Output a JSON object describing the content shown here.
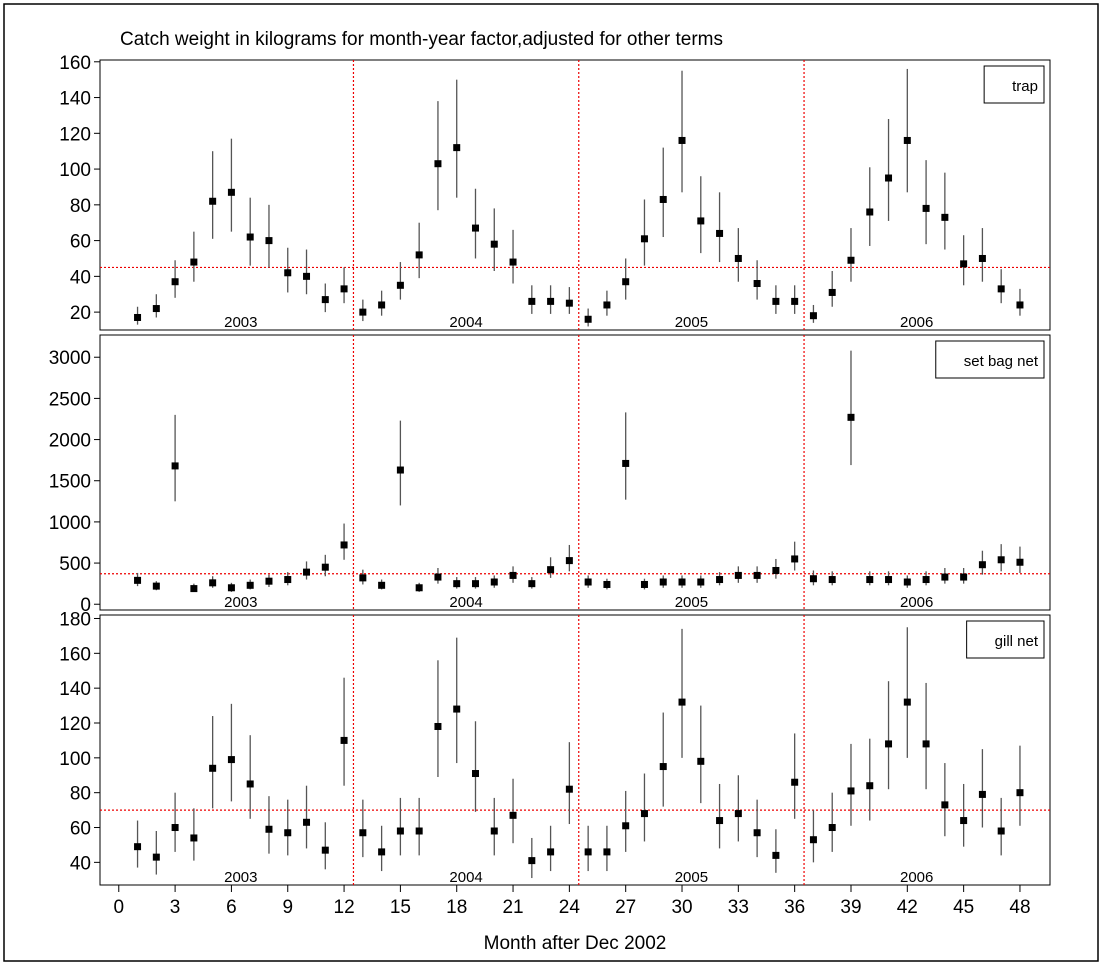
{
  "chart_data": [
    {
      "type": "scatter",
      "title": "Catch weight in kilograms for month-year factor,adjusted for other terms",
      "x": [
        1,
        2,
        3,
        4,
        5,
        6,
        7,
        8,
        9,
        10,
        11,
        12,
        13,
        14,
        15,
        16,
        17,
        18,
        19,
        20,
        21,
        22,
        23,
        24,
        25,
        26,
        27,
        28,
        29,
        30,
        31,
        32,
        33,
        34,
        35,
        36,
        37,
        38,
        39,
        40,
        41,
        42,
        43,
        44,
        45,
        46,
        47,
        48
      ],
      "series": [
        {
          "name": "trap",
          "color": "#000000",
          "values": [
            17,
            22,
            37,
            48,
            82,
            87,
            62,
            60,
            42,
            40,
            27,
            33,
            20,
            24,
            35,
            52,
            103,
            112,
            67,
            58,
            48,
            26,
            26,
            25,
            16,
            24,
            37,
            61,
            83,
            116,
            71,
            64,
            50,
            36,
            26,
            26,
            18,
            31,
            49,
            76,
            95,
            116,
            78,
            73,
            47,
            50,
            33,
            24
          ],
          "lower": [
            13,
            17,
            28,
            37,
            61,
            65,
            46,
            45,
            31,
            30,
            20,
            25,
            15,
            18,
            27,
            39,
            77,
            84,
            50,
            43,
            36,
            19,
            19,
            19,
            12,
            18,
            27,
            46,
            62,
            87,
            53,
            48,
            37,
            27,
            19,
            19,
            14,
            23,
            37,
            57,
            71,
            87,
            58,
            55,
            35,
            37,
            25,
            18
          ],
          "upper": [
            23,
            30,
            49,
            65,
            110,
            117,
            84,
            80,
            56,
            55,
            36,
            45,
            27,
            32,
            48,
            70,
            138,
            150,
            89,
            78,
            66,
            35,
            35,
            34,
            22,
            32,
            50,
            83,
            112,
            155,
            96,
            87,
            67,
            49,
            35,
            35,
            24,
            43,
            67,
            101,
            128,
            156,
            105,
            98,
            63,
            67,
            44,
            33
          ]
        }
      ],
      "xlim": [
        -1,
        49.6
      ],
      "ylim": [
        10,
        161
      ],
      "yticks": [
        20,
        40,
        60,
        80,
        100,
        120,
        140,
        160
      ],
      "hline": 45,
      "vlines": [
        12.5,
        24.5,
        36.5
      ],
      "year_labels": [
        "2003",
        "2004",
        "2005",
        "2006"
      ]
    },
    {
      "type": "scatter",
      "x": [
        1,
        2,
        3,
        4,
        5,
        6,
        7,
        8,
        9,
        10,
        11,
        12,
        13,
        14,
        15,
        16,
        17,
        18,
        19,
        20,
        21,
        22,
        23,
        24,
        25,
        26,
        27,
        28,
        29,
        30,
        31,
        32,
        33,
        34,
        35,
        36,
        37,
        38,
        39,
        40,
        41,
        42,
        43,
        44,
        45,
        46,
        47,
        48
      ],
      "series": [
        {
          "name": "set bag net",
          "color": "#000000",
          "values": [
            290,
            220,
            1680,
            190,
            260,
            200,
            230,
            280,
            300,
            390,
            450,
            720,
            320,
            230,
            1630,
            200,
            330,
            250,
            250,
            270,
            350,
            250,
            420,
            530,
            270,
            240,
            1710,
            240,
            270,
            270,
            270,
            300,
            350,
            350,
            410,
            550,
            310,
            300,
            2270,
            300,
            300,
            270,
            300,
            330,
            330,
            480,
            540,
            510
          ],
          "lower": [
            220,
            170,
            1250,
            150,
            200,
            150,
            180,
            210,
            230,
            300,
            340,
            540,
            240,
            180,
            1200,
            150,
            250,
            190,
            190,
            200,
            260,
            190,
            320,
            400,
            200,
            180,
            1270,
            180,
            200,
            200,
            200,
            230,
            260,
            260,
            310,
            410,
            230,
            230,
            1690,
            230,
            230,
            200,
            230,
            250,
            250,
            360,
            400,
            380
          ],
          "upper": [
            380,
            280,
            2300,
            250,
            340,
            260,
            300,
            360,
            390,
            520,
            600,
            980,
            420,
            300,
            2230,
            260,
            440,
            330,
            330,
            350,
            460,
            330,
            570,
            720,
            350,
            310,
            2330,
            310,
            350,
            350,
            350,
            390,
            460,
            460,
            550,
            760,
            410,
            400,
            3080,
            400,
            400,
            350,
            400,
            440,
            440,
            650,
            730,
            700
          ]
        }
      ],
      "xlim": [
        -1,
        49.6
      ],
      "ylim": [
        -70,
        3270
      ],
      "yticks": [
        0,
        500,
        1000,
        1500,
        2000,
        2500,
        3000
      ],
      "hline": 370,
      "vlines": [
        12.5,
        24.5,
        36.5
      ],
      "year_labels": [
        "2003",
        "2004",
        "2005",
        "2006"
      ]
    },
    {
      "type": "scatter",
      "x_label": "Month after Dec 2002",
      "x": [
        1,
        2,
        3,
        4,
        5,
        6,
        7,
        8,
        9,
        10,
        11,
        12,
        13,
        14,
        15,
        16,
        17,
        18,
        19,
        20,
        21,
        22,
        23,
        24,
        25,
        26,
        27,
        28,
        29,
        30,
        31,
        32,
        33,
        34,
        35,
        36,
        37,
        38,
        39,
        40,
        41,
        42,
        43,
        44,
        45,
        46,
        47,
        48
      ],
      "series": [
        {
          "name": "gill net",
          "color": "#000000",
          "values": [
            49,
            43,
            60,
            54,
            94,
            99,
            85,
            59,
            57,
            63,
            47,
            110,
            57,
            46,
            58,
            58,
            118,
            128,
            91,
            58,
            67,
            41,
            46,
            82,
            46,
            46,
            61,
            68,
            95,
            132,
            98,
            64,
            68,
            57,
            44,
            86,
            53,
            60,
            81,
            84,
            108,
            132,
            108,
            73,
            64,
            79,
            58,
            80
          ],
          "lower": [
            37,
            33,
            46,
            41,
            71,
            75,
            65,
            45,
            44,
            48,
            36,
            84,
            43,
            35,
            44,
            44,
            89,
            97,
            69,
            44,
            51,
            31,
            35,
            62,
            35,
            35,
            46,
            52,
            72,
            100,
            74,
            48,
            52,
            43,
            34,
            65,
            40,
            46,
            61,
            64,
            82,
            100,
            82,
            55,
            49,
            60,
            44,
            61
          ],
          "upper": [
            64,
            58,
            80,
            71,
            124,
            131,
            113,
            78,
            76,
            84,
            63,
            146,
            76,
            61,
            77,
            77,
            156,
            169,
            121,
            77,
            88,
            54,
            61,
            109,
            61,
            61,
            81,
            91,
            126,
            174,
            130,
            85,
            90,
            76,
            59,
            114,
            70,
            80,
            108,
            111,
            144,
            175,
            143,
            97,
            85,
            105,
            77,
            107
          ]
        }
      ],
      "xlim": [
        -1,
        49.6
      ],
      "ylim": [
        27,
        182
      ],
      "yticks": [
        40,
        60,
        80,
        100,
        120,
        140,
        160,
        180
      ],
      "xticks": [
        0,
        3,
        6,
        9,
        12,
        15,
        18,
        21,
        24,
        27,
        30,
        33,
        36,
        39,
        42,
        45,
        48
      ],
      "hline": 70,
      "vlines": [
        12.5,
        24.5,
        36.5
      ],
      "year_labels": [
        "2003",
        "2004",
        "2005",
        "2006"
      ]
    }
  ]
}
